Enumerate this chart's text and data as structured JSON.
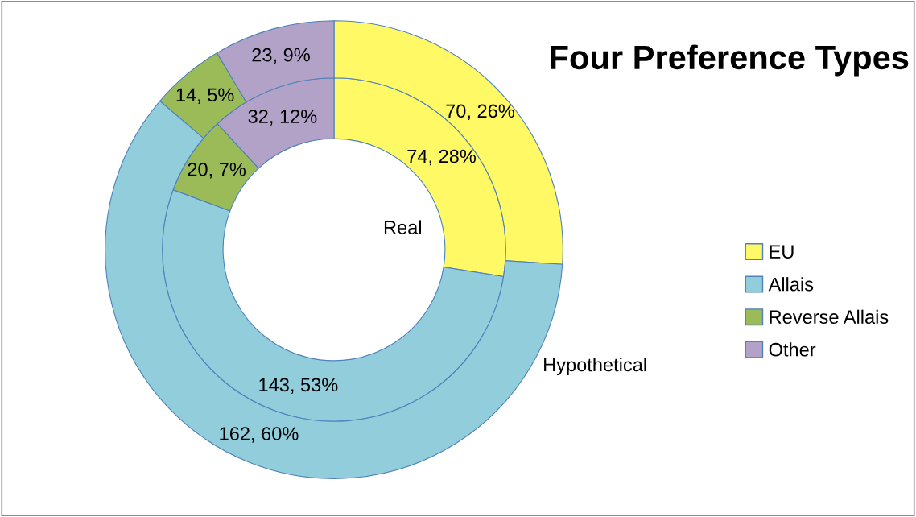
{
  "chart_data": {
    "type": "donut",
    "title": "Four Preference Types",
    "categories": [
      "EU",
      "Allais",
      "Reverse Allais",
      "Other"
    ],
    "colors": [
      "#fff966",
      "#92cddc",
      "#9bbb59",
      "#b2a2c7"
    ],
    "series": [
      {
        "name": "Real",
        "values": [
          74,
          143,
          20,
          32
        ],
        "value_labels": [
          "74, 28%",
          "143, 53%",
          "20, 7%",
          "32, 12%"
        ]
      },
      {
        "name": "Hypothetical",
        "values": [
          70,
          162,
          14,
          23
        ],
        "value_labels": [
          "70, 26%",
          "162, 60%",
          "14, 5%",
          "23, 9%"
        ]
      }
    ],
    "legend": "right"
  }
}
